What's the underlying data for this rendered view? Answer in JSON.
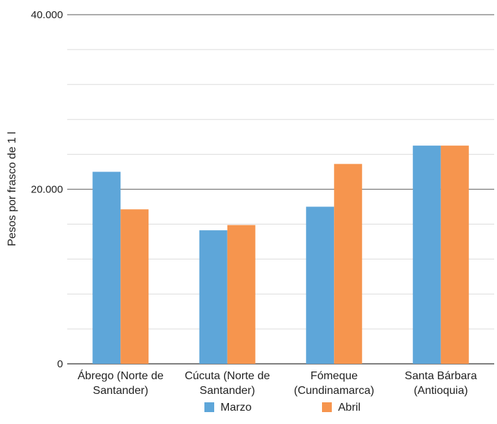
{
  "chart_data": {
    "type": "bar",
    "title": "",
    "xlabel": "",
    "ylabel": "Pesos por frasco de 1 l",
    "ylim": [
      0,
      40000
    ],
    "yticks": [
      {
        "value": 0,
        "label": "0"
      },
      {
        "value": 20000,
        "label": "20.000"
      },
      {
        "value": 40000,
        "label": "40.000"
      }
    ],
    "minor_grid_step": 4000,
    "grid": true,
    "legend_position": "bottom",
    "categories": [
      [
        "Ábrego (Norte de",
        "Santander)"
      ],
      [
        "Cúcuta (Norte de",
        "Santander)"
      ],
      [
        "Fómeque",
        "(Cundinamarca)"
      ],
      [
        "Santa Bárbara",
        "(Antioquia)"
      ]
    ],
    "series": [
      {
        "name": "Marzo",
        "color": "#5ea6d9",
        "values": [
          22000,
          15300,
          18000,
          25000
        ]
      },
      {
        "name": "Abril",
        "color": "#f6954e",
        "values": [
          17700,
          15900,
          22900,
          25000
        ]
      }
    ]
  }
}
